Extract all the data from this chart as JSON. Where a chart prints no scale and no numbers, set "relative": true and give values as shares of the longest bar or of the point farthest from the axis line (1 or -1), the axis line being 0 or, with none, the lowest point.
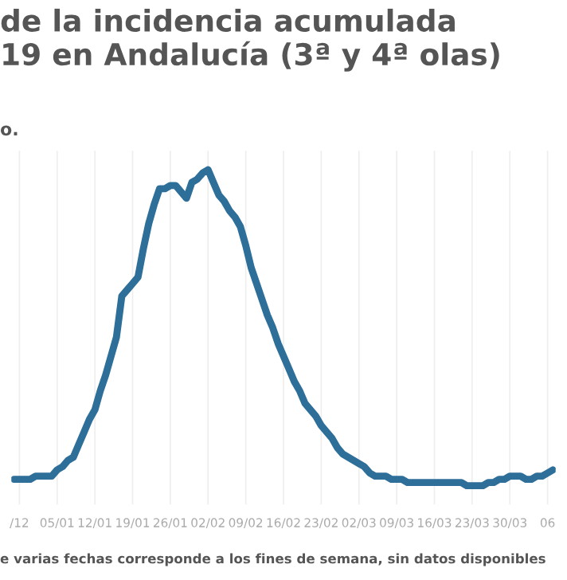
{
  "chart_data": {
    "type": "line",
    "title": "de la incidencia acumulada\n19 en Andalucía (3ª y 4ª olas)",
    "subtitle": "o.",
    "annotations": [
      "e varias fechas corresponde a los fines de semana, sin datos disponibles"
    ],
    "relative": true,
    "grid": "x",
    "legend": false,
    "marker": "none",
    "line_style": "solid",
    "categories": [
      null,
      "/12",
      null,
      null,
      null,
      null,
      null,
      null,
      "05/01",
      null,
      null,
      null,
      null,
      null,
      null,
      "12/01",
      null,
      null,
      null,
      null,
      null,
      null,
      "19/01",
      null,
      null,
      null,
      null,
      null,
      null,
      "26/01",
      null,
      null,
      null,
      null,
      null,
      null,
      "02/02",
      null,
      null,
      null,
      null,
      null,
      null,
      "09/02",
      null,
      null,
      null,
      null,
      null,
      null,
      "16/02",
      null,
      null,
      null,
      null,
      null,
      null,
      "23/02",
      null,
      null,
      null,
      null,
      null,
      null,
      "02/03",
      null,
      null,
      null,
      null,
      null,
      null,
      "09/03",
      null,
      null,
      null,
      null,
      null,
      null,
      "16/03",
      null,
      null,
      null,
      null,
      null,
      null,
      "23/03",
      null,
      null,
      null,
      null,
      null,
      null,
      "30/03",
      null,
      null,
      null,
      null,
      null,
      null,
      "06",
      null
    ],
    "series": [
      {
        "color": "#2e6f9a",
        "values": [
          0.02,
          0.02,
          0.02,
          0.02,
          0.03,
          0.03,
          0.03,
          0.03,
          0.05,
          0.06,
          0.08,
          0.09,
          0.13,
          0.17,
          0.21,
          0.24,
          0.3,
          0.35,
          0.41,
          0.47,
          0.6,
          0.62,
          0.64,
          0.66,
          0.75,
          0.83,
          0.89,
          0.94,
          0.94,
          0.95,
          0.95,
          0.93,
          0.91,
          0.96,
          0.97,
          0.99,
          1,
          0.96,
          0.92,
          0.9,
          0.87,
          0.85,
          0.82,
          0.76,
          0.69,
          0.64,
          0.59,
          0.54,
          0.5,
          0.45,
          0.41,
          0.37,
          0.33,
          0.3,
          0.26,
          0.24,
          0.22,
          0.19,
          0.17,
          0.15,
          0.12,
          0.1,
          0.09,
          0.08,
          0.07,
          0.06,
          0.04,
          0.03,
          0.03,
          0.03,
          0.02,
          0.02,
          0.02,
          0.01,
          0.01,
          0.01,
          0.01,
          0.01,
          0.01,
          0.01,
          0.01,
          0.01,
          0.01,
          0.01,
          0,
          0,
          0,
          0,
          0.01,
          0.01,
          0.02,
          0.02,
          0.03,
          0.03,
          0.03,
          0.02,
          0.02,
          0.03,
          0.03,
          0.04,
          0.05
        ]
      }
    ]
  }
}
